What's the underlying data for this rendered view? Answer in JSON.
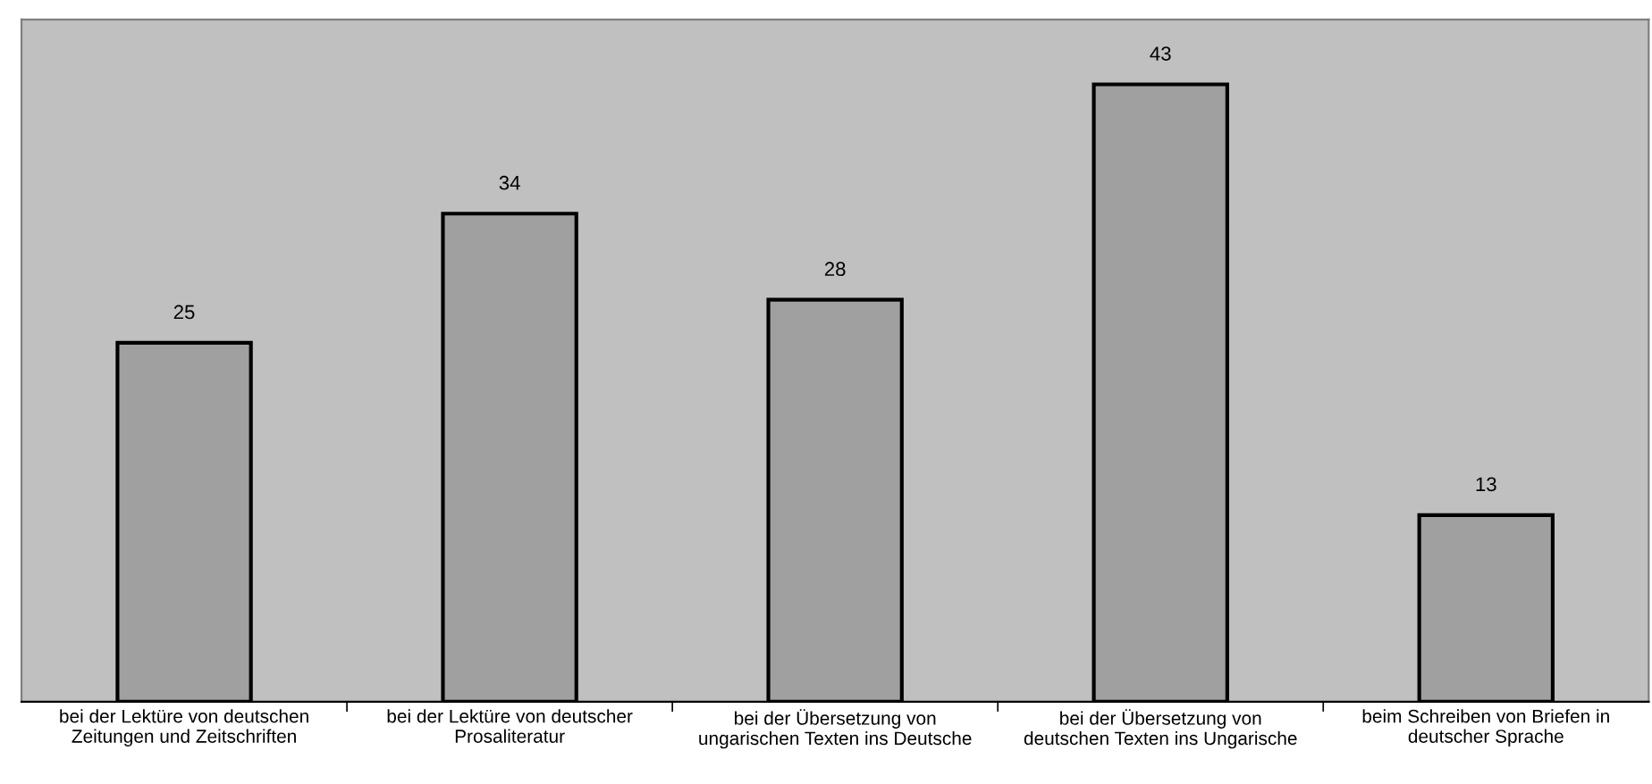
{
  "chart_data": {
    "type": "bar",
    "categories": [
      "bei der Lektüre von deutschen\nZeitungen und Zeitschriften",
      "bei der Lektüre von deutscher\nProsaliteratur",
      "bei der Übersetzung von\nungarischen Texten ins Deutsche",
      "bei der Übersetzung von\ndeutschen Texten ins Ungarische",
      "beim Schreiben von Briefen in\ndeutscher Sprache"
    ],
    "values": [
      25,
      34,
      28,
      43,
      13
    ],
    "color": "#a0a0a0",
    "data_labels": true,
    "grid": false,
    "legend": false
  }
}
